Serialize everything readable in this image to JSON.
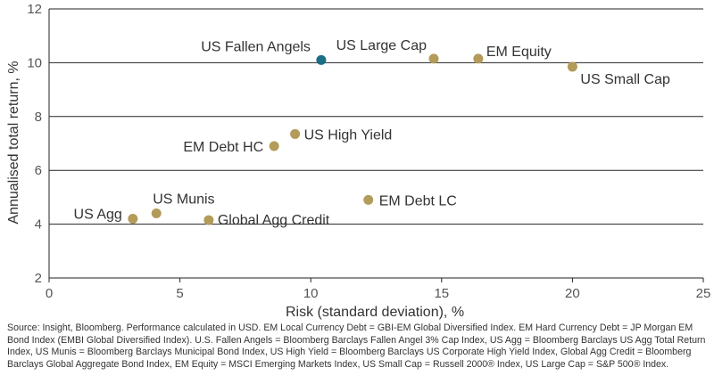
{
  "chart_data": {
    "type": "scatter",
    "title": "",
    "xlabel": "Risk (standard deviation), %",
    "ylabel": "Annualised total return, %",
    "xlim": [
      0,
      25
    ],
    "ylim": [
      2,
      12
    ],
    "xticks": [
      0,
      5,
      10,
      15,
      20,
      25
    ],
    "yticks": [
      2,
      4,
      6,
      8,
      10,
      12
    ],
    "grid": "horizontal",
    "colors": {
      "default": "#B39B5A",
      "highlight": "#1B6E85"
    },
    "points": [
      {
        "label": "US Fallen Angels",
        "x": 10.4,
        "y": 10.1,
        "highlight": true
      },
      {
        "label": "US Large Cap",
        "x": 14.7,
        "y": 10.15,
        "highlight": false
      },
      {
        "label": "EM Equity",
        "x": 16.4,
        "y": 10.15,
        "highlight": false
      },
      {
        "label": "US Small Cap",
        "x": 20.0,
        "y": 9.85,
        "highlight": false
      },
      {
        "label": "US High Yield",
        "x": 9.4,
        "y": 7.35,
        "highlight": false
      },
      {
        "label": "EM Debt HC",
        "x": 8.6,
        "y": 6.9,
        "highlight": false
      },
      {
        "label": "EM Debt LC",
        "x": 12.2,
        "y": 4.9,
        "highlight": false
      },
      {
        "label": "US Munis",
        "x": 4.1,
        "y": 4.4,
        "highlight": false
      },
      {
        "label": "US Agg",
        "x": 3.2,
        "y": 4.2,
        "highlight": false
      },
      {
        "label": "Global Agg Credit",
        "x": 6.1,
        "y": 4.15,
        "highlight": false
      }
    ]
  },
  "footnote": "Source: Insight, Bloomberg. Performance calculated in USD. EM Local Currency Debt = GBI-EM Global Diversified Index. EM Hard Currency Debt = JP Morgan EM Bond Index (EMBI Global Diversified Index). U.S. Fallen Angels = Bloomberg Barclays Fallen Angel 3% Cap Index, US Agg = Bloomberg Barclays US Agg Total Return Index, US Munis = Bloomberg Barclays Municipal Bond Index, US High Yield = Bloomberg Barclays US Corporate High Yield Index, Global Agg Credit = Bloomberg Barclays Global Aggregate Bond Index, EM Equity = MSCI Emerging Markets Index, US Small Cap = Russell 2000® Index, US Large Cap = S&P 500® Index."
}
